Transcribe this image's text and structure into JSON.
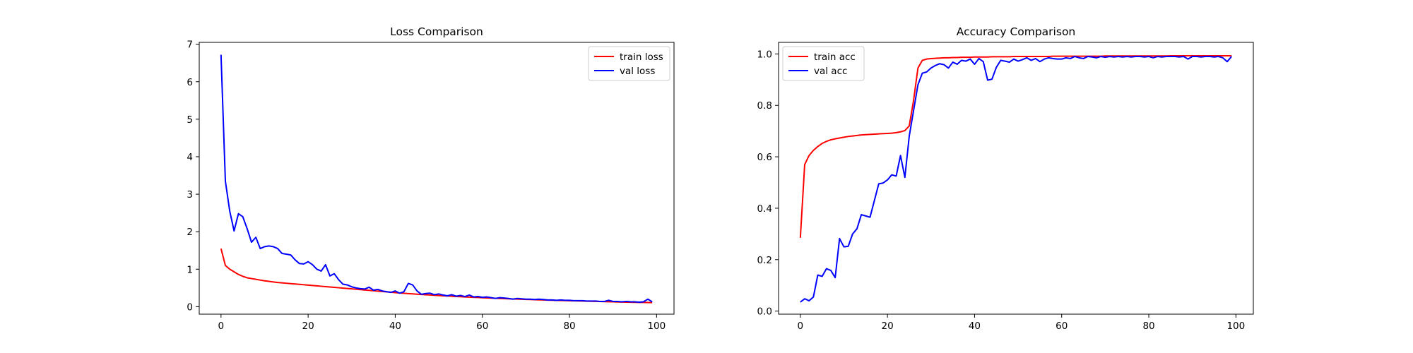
{
  "chart_data": [
    {
      "type": "line",
      "title": "Loss Comparison",
      "xlabel": "",
      "ylabel": "",
      "xlim": [
        -5,
        104
      ],
      "ylim": [
        -0.2,
        7.05
      ],
      "xticks": [
        0,
        20,
        40,
        60,
        80,
        100
      ],
      "yticks": [
        0,
        1,
        2,
        3,
        4,
        5,
        6,
        7
      ],
      "grid": false,
      "legend_position": "top-right",
      "series": [
        {
          "name": "train loss",
          "color": "#ff0000",
          "y": [
            1.55,
            1.1,
            1.0,
            0.93,
            0.86,
            0.81,
            0.77,
            0.75,
            0.73,
            0.71,
            0.69,
            0.675,
            0.66,
            0.645,
            0.635,
            0.625,
            0.615,
            0.605,
            0.595,
            0.585,
            0.575,
            0.565,
            0.555,
            0.545,
            0.535,
            0.525,
            0.515,
            0.505,
            0.495,
            0.485,
            0.475,
            0.465,
            0.455,
            0.445,
            0.435,
            0.425,
            0.415,
            0.405,
            0.395,
            0.385,
            0.375,
            0.365,
            0.357,
            0.349,
            0.341,
            0.333,
            0.325,
            0.318,
            0.311,
            0.304,
            0.297,
            0.29,
            0.284,
            0.278,
            0.272,
            0.266,
            0.26,
            0.254,
            0.249,
            0.244,
            0.239,
            0.234,
            0.229,
            0.224,
            0.219,
            0.214,
            0.21,
            0.206,
            0.202,
            0.198,
            0.194,
            0.19,
            0.186,
            0.182,
            0.178,
            0.174,
            0.171,
            0.168,
            0.165,
            0.162,
            0.159,
            0.156,
            0.153,
            0.15,
            0.147,
            0.144,
            0.141,
            0.138,
            0.135,
            0.132,
            0.129,
            0.126,
            0.123,
            0.12,
            0.118,
            0.116,
            0.114,
            0.112,
            0.11,
            0.108
          ]
        },
        {
          "name": "val loss",
          "color": "#0000ff",
          "y": [
            6.72,
            3.35,
            2.55,
            2.02,
            2.48,
            2.4,
            2.08,
            1.72,
            1.85,
            1.55,
            1.6,
            1.62,
            1.6,
            1.55,
            1.42,
            1.4,
            1.38,
            1.25,
            1.15,
            1.14,
            1.2,
            1.12,
            1.0,
            0.95,
            1.12,
            0.82,
            0.88,
            0.72,
            0.6,
            0.58,
            0.53,
            0.5,
            0.48,
            0.47,
            0.52,
            0.44,
            0.46,
            0.42,
            0.4,
            0.38,
            0.42,
            0.36,
            0.4,
            0.62,
            0.58,
            0.42,
            0.33,
            0.35,
            0.36,
            0.32,
            0.34,
            0.31,
            0.29,
            0.32,
            0.28,
            0.3,
            0.27,
            0.31,
            0.26,
            0.27,
            0.25,
            0.26,
            0.24,
            0.22,
            0.24,
            0.23,
            0.22,
            0.2,
            0.22,
            0.21,
            0.2,
            0.2,
            0.19,
            0.2,
            0.19,
            0.18,
            0.18,
            0.17,
            0.18,
            0.17,
            0.17,
            0.16,
            0.16,
            0.16,
            0.15,
            0.15,
            0.15,
            0.14,
            0.14,
            0.17,
            0.14,
            0.14,
            0.13,
            0.14,
            0.13,
            0.13,
            0.12,
            0.13,
            0.2,
            0.13
          ]
        }
      ]
    },
    {
      "type": "line",
      "title": "Accuracy Comparison",
      "xlabel": "",
      "ylabel": "",
      "xlim": [
        -5,
        104
      ],
      "ylim": [
        -0.012,
        1.045
      ],
      "xticks": [
        0,
        20,
        40,
        60,
        80,
        100
      ],
      "yticks": [
        0.0,
        0.2,
        0.4,
        0.6,
        0.8,
        1.0
      ],
      "ytick_labels": [
        "0.0",
        "0.2",
        "0.4",
        "0.6",
        "0.8",
        "1.0"
      ],
      "grid": false,
      "legend_position": "top-left",
      "series": [
        {
          "name": "train acc",
          "color": "#ff0000",
          "y": [
            0.285,
            0.57,
            0.605,
            0.625,
            0.64,
            0.652,
            0.66,
            0.666,
            0.67,
            0.673,
            0.676,
            0.679,
            0.681,
            0.683,
            0.685,
            0.686,
            0.687,
            0.688,
            0.689,
            0.69,
            0.691,
            0.692,
            0.694,
            0.697,
            0.702,
            0.72,
            0.82,
            0.945,
            0.975,
            0.98,
            0.982,
            0.983,
            0.984,
            0.985,
            0.985,
            0.986,
            0.986,
            0.987,
            0.987,
            0.987,
            0.988,
            0.988,
            0.988,
            0.988,
            0.989,
            0.989,
            0.989,
            0.989,
            0.989,
            0.99,
            0.99,
            0.99,
            0.99,
            0.99,
            0.99,
            0.99,
            0.99,
            0.99,
            0.991,
            0.991,
            0.991,
            0.991,
            0.991,
            0.991,
            0.991,
            0.991,
            0.991,
            0.991,
            0.991,
            0.991,
            0.992,
            0.992,
            0.992,
            0.992,
            0.992,
            0.992,
            0.992,
            0.992,
            0.992,
            0.992,
            0.992,
            0.992,
            0.992,
            0.992,
            0.992,
            0.993,
            0.993,
            0.993,
            0.993,
            0.993,
            0.993,
            0.993,
            0.993,
            0.993,
            0.993,
            0.993,
            0.993,
            0.993,
            0.993,
            0.993
          ]
        },
        {
          "name": "val acc",
          "color": "#0000ff",
          "y": [
            0.035,
            0.048,
            0.04,
            0.055,
            0.14,
            0.135,
            0.165,
            0.158,
            0.13,
            0.282,
            0.25,
            0.252,
            0.3,
            0.32,
            0.375,
            0.37,
            0.365,
            0.43,
            0.495,
            0.498,
            0.51,
            0.53,
            0.525,
            0.605,
            0.52,
            0.68,
            0.78,
            0.88,
            0.925,
            0.93,
            0.945,
            0.955,
            0.962,
            0.958,
            0.945,
            0.968,
            0.96,
            0.975,
            0.972,
            0.98,
            0.96,
            0.982,
            0.97,
            0.898,
            0.902,
            0.948,
            0.975,
            0.972,
            0.968,
            0.98,
            0.972,
            0.978,
            0.985,
            0.975,
            0.982,
            0.97,
            0.98,
            0.985,
            0.982,
            0.98,
            0.98,
            0.985,
            0.982,
            0.99,
            0.985,
            0.982,
            0.99,
            0.988,
            0.985,
            0.99,
            0.987,
            0.99,
            0.988,
            0.99,
            0.988,
            0.99,
            0.988,
            0.99,
            0.99,
            0.988,
            0.99,
            0.985,
            0.99,
            0.988,
            0.99,
            0.99,
            0.99,
            0.988,
            0.99,
            0.98,
            0.99,
            0.99,
            0.988,
            0.99,
            0.99,
            0.988,
            0.99,
            0.985,
            0.97,
            0.99
          ]
        }
      ]
    }
  ]
}
